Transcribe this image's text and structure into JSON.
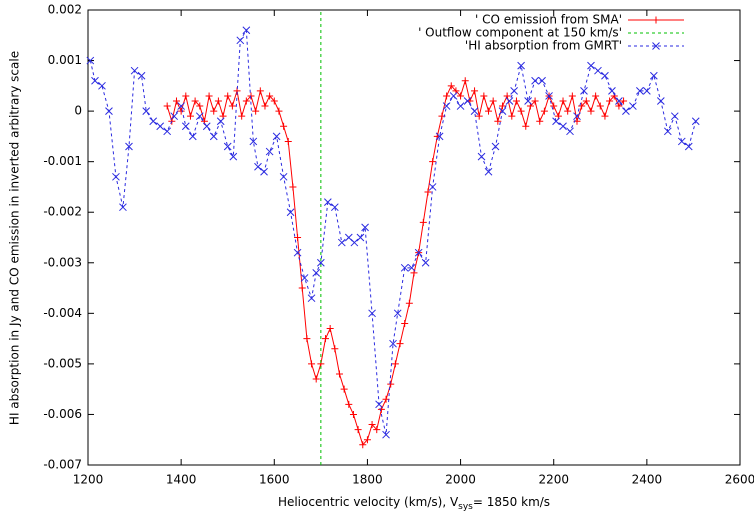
{
  "chart_data": {
    "type": "line",
    "y_label": "HI absorption in Jy and CO emission in inverted arbitrary scale",
    "x_label": {
      "main": "Heliocentric velocity (km/s), V",
      "sub": "sys",
      "tail": "= 1850 km/s"
    },
    "xlim": [
      1200,
      2600
    ],
    "xticks": [
      1200,
      1400,
      1600,
      1800,
      2000,
      2200,
      2400,
      2600
    ],
    "ylim": [
      -0.007,
      0.002
    ],
    "yticks": [
      0.002,
      0.001,
      0,
      -0.001,
      -0.002,
      -0.003,
      -0.004,
      -0.005,
      -0.006,
      -0.007
    ],
    "grid": false,
    "legend": "top-right",
    "series": [
      {
        "name": "' CO emission from SMA'",
        "color": "#ff0000",
        "marker": "plus",
        "dash": false,
        "x": [
          1370,
          1380,
          1390,
          1400,
          1410,
          1420,
          1430,
          1440,
          1450,
          1460,
          1470,
          1480,
          1490,
          1500,
          1510,
          1520,
          1530,
          1540,
          1550,
          1560,
          1570,
          1580,
          1590,
          1600,
          1610,
          1620,
          1630,
          1640,
          1650,
          1660,
          1670,
          1680,
          1690,
          1700,
          1710,
          1720,
          1730,
          1740,
          1750,
          1760,
          1770,
          1780,
          1790,
          1800,
          1810,
          1820,
          1830,
          1840,
          1850,
          1860,
          1870,
          1880,
          1890,
          1900,
          1910,
          1920,
          1930,
          1940,
          1950,
          1960,
          1970,
          1980,
          1990,
          2000,
          2010,
          2020,
          2030,
          2040,
          2050,
          2060,
          2070,
          2080,
          2090,
          2100,
          2110,
          2120,
          2130,
          2140,
          2150,
          2160,
          2170,
          2180,
          2190,
          2200,
          2210,
          2220,
          2230,
          2240,
          2250,
          2260,
          2270,
          2280,
          2290,
          2300,
          2310,
          2320,
          2330,
          2340,
          2350
        ],
        "values": [
          0.0001,
          -0.0002,
          0.0002,
          0,
          0.0003,
          -0.0001,
          0.0002,
          0.0001,
          -0.0002,
          0.0003,
          0,
          0.0002,
          -0.0001,
          0.0003,
          0.0001,
          0.0004,
          -0.0001,
          0.0002,
          0.0003,
          0,
          0.0004,
          0.0001,
          0.0003,
          0.0002,
          0,
          -0.0003,
          -0.0006,
          -0.0015,
          -0.0025,
          -0.0035,
          -0.0045,
          -0.005,
          -0.0053,
          -0.005,
          -0.0045,
          -0.0043,
          -0.0047,
          -0.0052,
          -0.0055,
          -0.0058,
          -0.006,
          -0.0063,
          -0.0066,
          -0.0065,
          -0.0062,
          -0.0063,
          -0.0059,
          -0.0057,
          -0.0054,
          -0.005,
          -0.0046,
          -0.0042,
          -0.0038,
          -0.0032,
          -0.0028,
          -0.0022,
          -0.0016,
          -0.001,
          -0.0005,
          -0.0001,
          0.0003,
          0.0005,
          0.0004,
          0.0003,
          0.0006,
          0.0002,
          0.0004,
          -0.0001,
          0.0003,
          0,
          0.0002,
          -0.0002,
          0.0001,
          0.0003,
          -0.0001,
          0.0002,
          0,
          -0.0003,
          0.0001,
          0.0002,
          -0.0002,
          0,
          0.0003,
          0.0001,
          -0.0001,
          0.0002,
          0,
          0.0003,
          -0.0002,
          0.0001,
          0.0002,
          0,
          0.0003,
          0.0001,
          -0.0001,
          0.0002,
          0.0003,
          0.0001,
          0.0002
        ]
      },
      {
        "name": "' Outflow component at 150 km/s'",
        "color": "#00c000",
        "marker": "none",
        "dash": true,
        "x": [
          1700,
          1700
        ],
        "values": [
          -0.007,
          0.002
        ]
      },
      {
        "name": "'HI absorption from GMRT'",
        "color": "#2a2ae0",
        "marker": "cross",
        "dash": true,
        "x": [
          1205,
          1215,
          1230,
          1245,
          1260,
          1275,
          1288,
          1300,
          1315,
          1325,
          1340,
          1355,
          1370,
          1385,
          1400,
          1410,
          1425,
          1440,
          1455,
          1470,
          1485,
          1500,
          1512,
          1527,
          1540,
          1555,
          1565,
          1578,
          1590,
          1605,
          1620,
          1635,
          1650,
          1665,
          1680,
          1690,
          1700,
          1715,
          1730,
          1745,
          1760,
          1772,
          1785,
          1795,
          1810,
          1825,
          1840,
          1855,
          1865,
          1880,
          1895,
          1910,
          1925,
          1940,
          1955,
          1970,
          1985,
          2000,
          2015,
          2030,
          2045,
          2060,
          2075,
          2090,
          2105,
          2115,
          2130,
          2145,
          2160,
          2175,
          2190,
          2205,
          2220,
          2235,
          2250,
          2265,
          2280,
          2295,
          2310,
          2325,
          2340,
          2355,
          2370,
          2385,
          2400,
          2415,
          2430,
          2445,
          2460,
          2475,
          2490,
          2505
        ],
        "values": [
          0.001,
          0.0006,
          0.0005,
          0,
          -0.0013,
          -0.0019,
          -0.0007,
          0.0008,
          0.0007,
          0,
          -0.0002,
          -0.0003,
          -0.0004,
          -0.0001,
          0.0001,
          -0.0003,
          -0.0005,
          -0.0001,
          -0.0003,
          -0.0005,
          -0.0002,
          -0.0007,
          -0.0009,
          0.0014,
          0.0016,
          -0.0006,
          -0.0011,
          -0.0012,
          -0.0008,
          -0.0005,
          -0.0013,
          -0.002,
          -0.0028,
          -0.0033,
          -0.0037,
          -0.0032,
          -0.003,
          -0.0018,
          -0.0019,
          -0.0026,
          -0.0025,
          -0.0026,
          -0.0025,
          -0.0023,
          -0.004,
          -0.0058,
          -0.0064,
          -0.0046,
          -0.004,
          -0.0031,
          -0.0031,
          -0.0028,
          -0.003,
          -0.0015,
          -0.0005,
          0.0001,
          0.0003,
          0.0001,
          0.0002,
          0,
          -0.0009,
          -0.0012,
          -0.0007,
          0,
          0.0002,
          0.0004,
          0.0009,
          0.0002,
          0.0006,
          0.0006,
          0.0003,
          -0.0002,
          -0.0003,
          -0.0004,
          -0.0001,
          0.0004,
          0.0009,
          0.0008,
          0.0007,
          0.0004,
          0.0002,
          0,
          0.0001,
          0.0004,
          0.0004,
          0.0007,
          0.0002,
          -0.0004,
          -0.0001,
          -0.0006,
          -0.0007,
          -0.0002
        ]
      }
    ]
  }
}
